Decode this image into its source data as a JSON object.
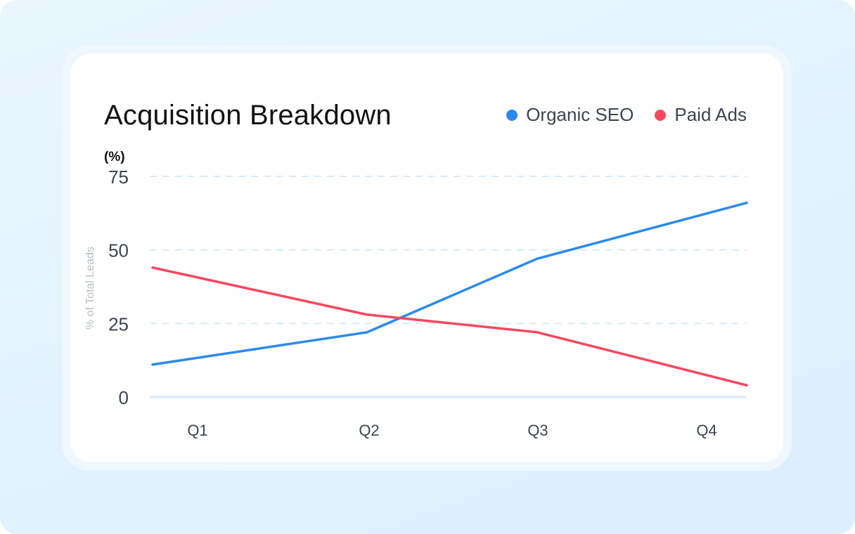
{
  "chart_data": {
    "type": "line",
    "title": "Acquisition Breakdown",
    "unit_label": "(%)",
    "ylabel": "% of Total Leads",
    "xlabel": "",
    "categories": [
      "Q1",
      "Q2",
      "Q3",
      "Q4"
    ],
    "ylim": [
      0,
      75
    ],
    "yticks": [
      0,
      25,
      50,
      75
    ],
    "grid": true,
    "legend_position": "top-right",
    "series": [
      {
        "name": "Organic SEO",
        "color": "#2b8aec",
        "values": [
          11,
          22,
          47,
          66
        ]
      },
      {
        "name": "Paid Ads",
        "color": "#f5485f",
        "values": [
          44,
          28,
          22,
          4
        ]
      }
    ]
  }
}
